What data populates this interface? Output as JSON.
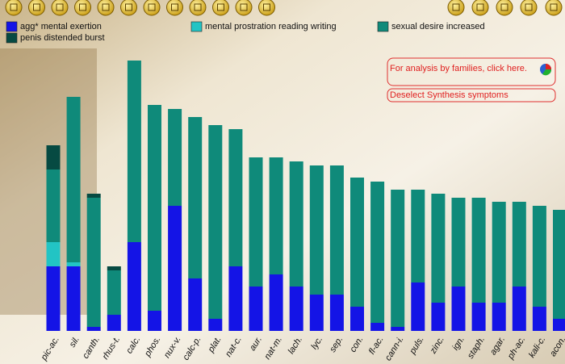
{
  "chart_data": {
    "type": "stacked-bar",
    "categories": [
      "pic-ac.",
      "sil.",
      "canth.",
      "rhus-t.",
      "calc.",
      "phos.",
      "nux-v.",
      "calc-p.",
      "plat.",
      "nat-c.",
      "aur.",
      "nat-m.",
      "lach.",
      "lyc.",
      "sep.",
      "con.",
      "fl-ac.",
      "cann-i.",
      "puls.",
      "zinc.",
      "ign.",
      "staph.",
      "agar.",
      "ph-ac.",
      "kali-c.",
      "acon."
    ],
    "series": [
      {
        "name": "agg* mental exertion",
        "color": "#1414e6",
        "values": [
          16,
          16,
          1,
          4,
          22,
          5,
          31,
          13,
          3,
          16,
          11,
          14,
          11,
          9,
          9,
          6,
          2,
          1,
          12,
          7,
          11,
          7,
          7,
          11,
          6,
          3
        ]
      },
      {
        "name": "mental prostration reading writing",
        "color": "#22c4c4",
        "values": [
          6,
          1,
          0,
          0,
          0,
          0,
          0,
          0,
          0,
          0,
          0,
          0,
          0,
          0,
          0,
          0,
          0,
          0,
          0,
          0,
          0,
          0,
          0,
          0,
          0,
          0
        ]
      },
      {
        "name": "sexual desire increased",
        "color": "#0f8a7a",
        "values": [
          18,
          41,
          32,
          11,
          45,
          51,
          24,
          40,
          48,
          34,
          32,
          29,
          31,
          32,
          32,
          32,
          35,
          34,
          23,
          27,
          22,
          26,
          25,
          21,
          25,
          27
        ]
      },
      {
        "name": "penis distended burst",
        "color": "#064a42",
        "values": [
          6,
          0,
          1,
          1,
          0,
          0,
          0,
          0,
          0,
          0,
          0,
          0,
          0,
          0,
          0,
          0,
          0,
          0,
          0,
          0,
          0,
          0,
          0,
          0,
          0,
          0
        ]
      }
    ],
    "ylim": [
      0,
      70
    ]
  },
  "buttons": [
    "For analysis by families, click here.",
    "Deselect Synthesis symptoms"
  ]
}
